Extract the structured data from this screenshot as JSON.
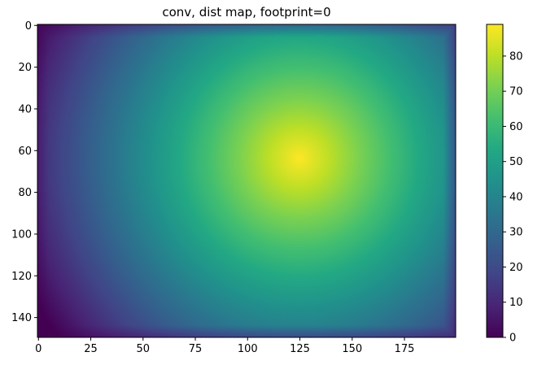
{
  "chart_data": {
    "type": "heatmap",
    "title": "conv, dist map, footprint=0",
    "xlabel": "",
    "ylabel": "",
    "colormap": "viridis",
    "image_shape": {
      "rows": 150,
      "cols": 200
    },
    "xlim": [
      -0.5,
      199.5
    ],
    "ylim": [
      149.5,
      -0.5
    ],
    "y_axis_inverted": true,
    "x_ticks": [
      0,
      25,
      50,
      75,
      100,
      125,
      150,
      175
    ],
    "x_tick_labels": [
      "0",
      "25",
      "50",
      "75",
      "100",
      "125",
      "150",
      "175"
    ],
    "y_ticks": [
      0,
      20,
      40,
      60,
      80,
      100,
      120,
      140
    ],
    "y_tick_labels": [
      "0",
      "20",
      "40",
      "60",
      "80",
      "100",
      "120",
      "140"
    ],
    "field": {
      "description_of_values": "distance-map convolution; maximum near center, falling toward edges",
      "peak_location": {
        "col": 125,
        "row": 64
      },
      "peak_value": 89,
      "corner_values": {
        "top_left": 3,
        "top_right": 12,
        "bottom_left": 0,
        "bottom_right": 14
      },
      "edge_zero_rows_at_top": true
    },
    "colorbar": {
      "range": [
        0,
        89
      ],
      "ticks": [
        0,
        10,
        20,
        30,
        40,
        50,
        60,
        70,
        80
      ],
      "tick_labels": [
        "0",
        "10",
        "20",
        "30",
        "40",
        "50",
        "60",
        "70",
        "80"
      ],
      "location": "right"
    },
    "grid": false,
    "legend": "none"
  }
}
